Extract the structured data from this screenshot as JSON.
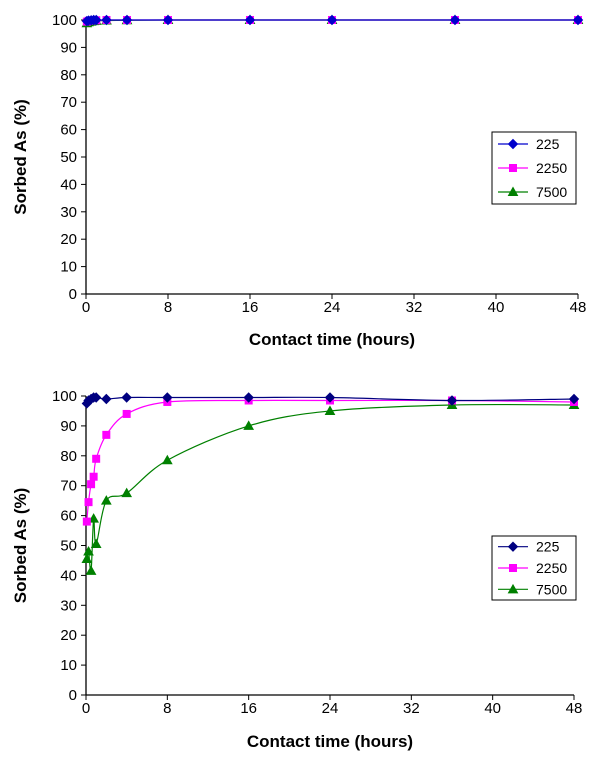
{
  "chart_data": [
    {
      "type": "line",
      "xlabel": "Contact time (hours)",
      "ylabel": "Sorbed As (%)",
      "xlim": [
        0,
        48
      ],
      "ylim": [
        0,
        100
      ],
      "xticks": [
        0,
        8,
        16,
        24,
        32,
        40,
        48
      ],
      "yticks": [
        0,
        10,
        20,
        30,
        40,
        50,
        60,
        70,
        80,
        90,
        100
      ],
      "grid": false,
      "legend_position": "right",
      "x": [
        0.083,
        0.25,
        0.5,
        0.75,
        1,
        2,
        4,
        8,
        16,
        24,
        36,
        48
      ],
      "series": [
        {
          "name": "225",
          "color": "#0000cc",
          "marker": "diamond",
          "values": [
            99.6,
            99.8,
            99.9,
            100,
            100,
            100,
            100,
            100,
            100,
            100,
            100,
            100
          ]
        },
        {
          "name": "2250",
          "color": "#ff00ff",
          "marker": "square",
          "values": [
            99.4,
            99.7,
            99.8,
            99.9,
            99.9,
            100,
            100,
            100,
            100,
            100,
            100,
            100
          ]
        },
        {
          "name": "7500",
          "color": "#008000",
          "marker": "triangle",
          "values": [
            98.8,
            99.2,
            99.4,
            99.6,
            99.7,
            99.8,
            99.9,
            100,
            100,
            100,
            100,
            100
          ]
        }
      ]
    },
    {
      "type": "line",
      "xlabel": "Contact time (hours)",
      "ylabel": "Sorbed As (%)",
      "xlim": [
        0,
        48
      ],
      "ylim": [
        0,
        100
      ],
      "xticks": [
        0,
        8,
        16,
        24,
        32,
        40,
        48
      ],
      "yticks": [
        0,
        10,
        20,
        30,
        40,
        50,
        60,
        70,
        80,
        90,
        100
      ],
      "grid": false,
      "legend_position": "right",
      "x": [
        0.083,
        0.25,
        0.5,
        0.75,
        1,
        2,
        4,
        8,
        16,
        24,
        36,
        48
      ],
      "series": [
        {
          "name": "225",
          "color": "#000080",
          "marker": "diamond",
          "values": [
            97.5,
            98.5,
            99,
            99.5,
            99.5,
            99,
            99.5,
            99.5,
            99.5,
            99.5,
            98.5,
            99
          ]
        },
        {
          "name": "2250",
          "color": "#ff00ff",
          "marker": "square",
          "values": [
            58,
            64.5,
            70.5,
            73,
            79,
            87,
            94,
            98,
            98.5,
            98.5,
            98.5,
            98
          ]
        },
        {
          "name": "7500",
          "color": "#008000",
          "marker": "triangle",
          "values": [
            45.5,
            48,
            41.5,
            59,
            50.5,
            65,
            67.5,
            78.5,
            90,
            95,
            97,
            97
          ]
        }
      ]
    }
  ]
}
